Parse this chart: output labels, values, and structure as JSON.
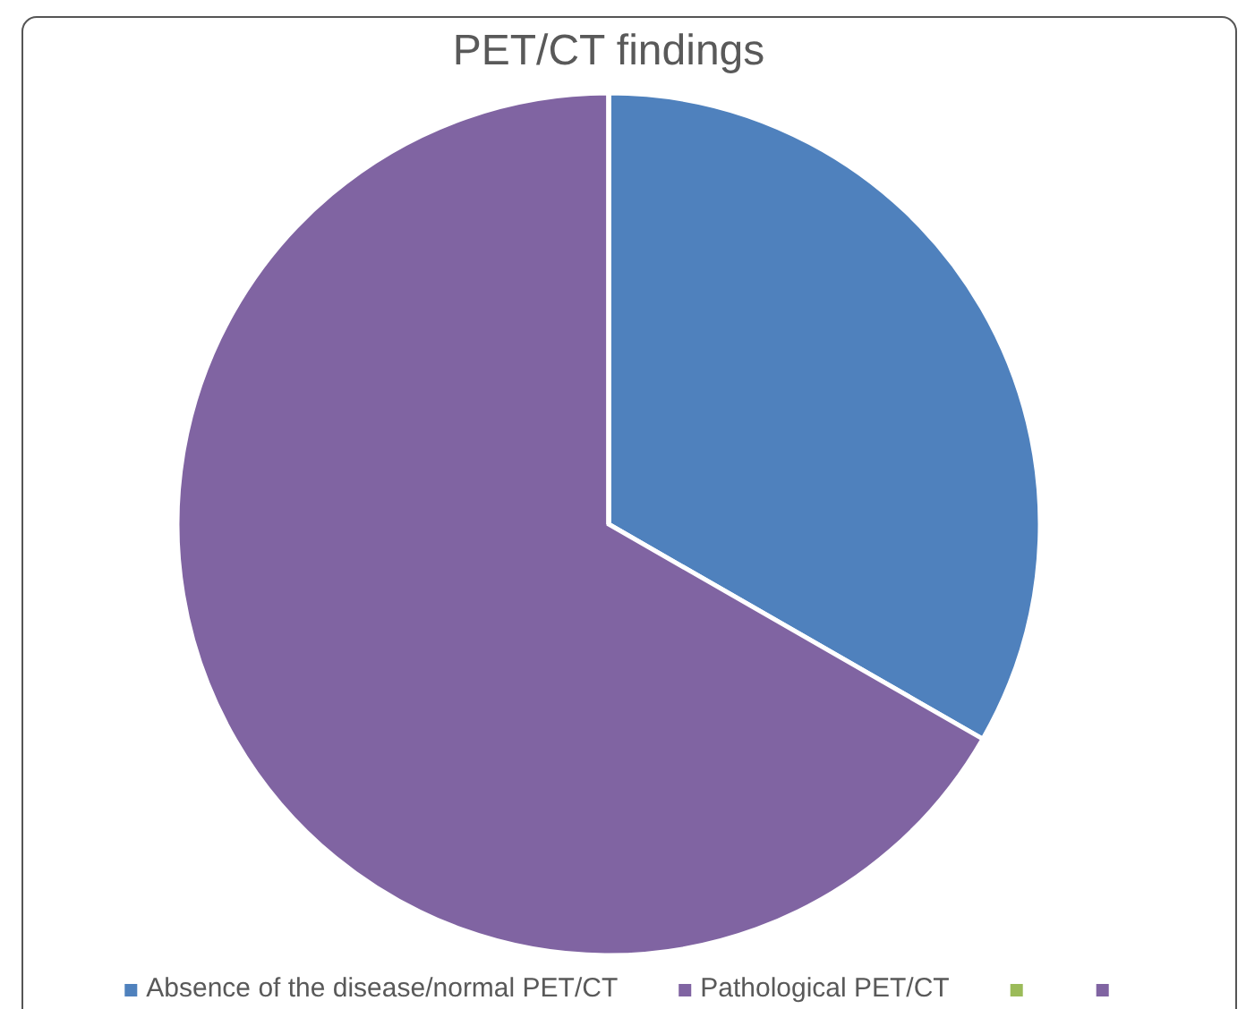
{
  "chart_data": {
    "type": "pie",
    "title": "PET/CT findings",
    "categories": [
      "Absence of the disease/normal PET/CT",
      "Pathological PET/CT",
      null,
      null
    ],
    "values": [
      33.3,
      66.7,
      0,
      0
    ],
    "colors": [
      "#4f81bd",
      "#8064a2",
      "#9bbb59",
      "#8064a2"
    ],
    "legend": "bottom"
  }
}
